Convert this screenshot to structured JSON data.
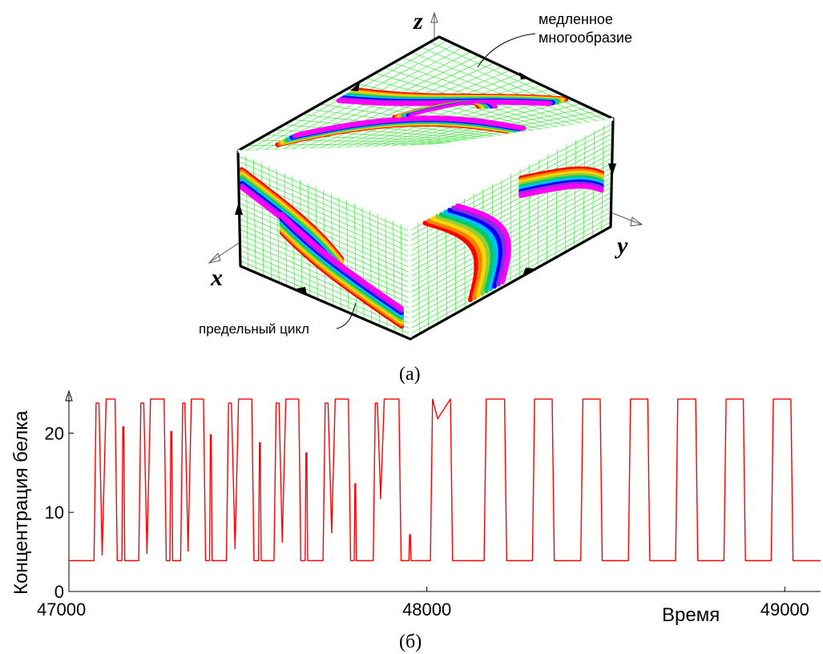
{
  "panel_a": {
    "caption": "(а)",
    "axis_x": "x",
    "axis_y": "y",
    "axis_z": "z",
    "label_manifold": [
      "медленное",
      "многообразие"
    ],
    "label_cycle": "предельный цикл",
    "rainbow_colors": [
      "#ff0000",
      "#ff7f00",
      "#ffd700",
      "#9acd32",
      "#00cc66",
      "#00bfff",
      "#0000ff",
      "#8a2be2",
      "#ff00ff"
    ],
    "mesh_color": "#33dd33"
  },
  "panel_b": {
    "caption": "(б)"
  },
  "chart_data": {
    "type": "line",
    "title": "",
    "xlabel": "Время",
    "ylabel": "Концентрация белка",
    "xlim": [
      47000,
      49100
    ],
    "ylim": [
      0,
      25
    ],
    "x_ticks": [
      "47000",
      "48000",
      "49000"
    ],
    "x_tick_values": [
      47000,
      48000,
      49000
    ],
    "y_ticks": [
      "0",
      "10",
      "20"
    ],
    "y_tick_values": [
      0,
      10,
      20
    ],
    "grid": false,
    "line_color": "#ff0000",
    "series": [
      {
        "baseline": 3.9,
        "plateau": 24.3,
        "pulses": [
          {
            "start": 47070,
            "end": 47090,
            "peak": 23.8
          },
          {
            "start": 47098,
            "end": 47135,
            "peak": 24.3
          },
          {
            "start": 47148,
            "end": 47156,
            "peak": 20.8
          },
          {
            "start": 47195,
            "end": 47215,
            "peak": 23.8
          },
          {
            "start": 47222,
            "end": 47272,
            "peak": 24.3
          },
          {
            "start": 47282,
            "end": 47290,
            "peak": 20.2
          },
          {
            "start": 47312,
            "end": 47330,
            "peak": 23.8
          },
          {
            "start": 47336,
            "end": 47382,
            "peak": 24.3
          },
          {
            "start": 47393,
            "end": 47400,
            "peak": 19.8
          },
          {
            "start": 47440,
            "end": 47460,
            "peak": 23.8
          },
          {
            "start": 47468,
            "end": 47517,
            "peak": 24.3
          },
          {
            "start": 47530,
            "end": 47537,
            "peak": 18.8
          },
          {
            "start": 47573,
            "end": 47593,
            "peak": 23.8
          },
          {
            "start": 47600,
            "end": 47648,
            "peak": 24.3
          },
          {
            "start": 47660,
            "end": 47667,
            "peak": 17.5
          },
          {
            "start": 47710,
            "end": 47730,
            "peak": 23.8
          },
          {
            "start": 47738,
            "end": 47787,
            "peak": 24.3
          },
          {
            "start": 47797,
            "end": 47803,
            "peak": 13.6
          },
          {
            "start": 47850,
            "end": 47868,
            "peak": 23.8
          },
          {
            "start": 47875,
            "end": 47928,
            "peak": 24.3
          },
          {
            "start": 47950,
            "end": 47956,
            "peak": 7.2
          },
          {
            "start": 48010,
            "end": 48072,
            "peak": 24.3
          },
          {
            "start": 48160,
            "end": 48223,
            "peak": 24.3
          },
          {
            "start": 48295,
            "end": 48356,
            "peak": 24.3
          },
          {
            "start": 48430,
            "end": 48490,
            "peak": 24.3
          },
          {
            "start": 48563,
            "end": 48623,
            "peak": 24.3
          },
          {
            "start": 48695,
            "end": 48757,
            "peak": 24.3
          },
          {
            "start": 48830,
            "end": 48890,
            "peak": 24.3
          },
          {
            "start": 48962,
            "end": 49023,
            "peak": 24.3
          }
        ],
        "dips": [
          {
            "x": 47093,
            "value": 4.6
          },
          {
            "x": 47218,
            "value": 4.8
          },
          {
            "x": 47333,
            "value": 5.1
          },
          {
            "x": 47464,
            "value": 5.4
          },
          {
            "x": 47596,
            "value": 6.2
          },
          {
            "x": 47734,
            "value": 7.4
          },
          {
            "x": 47871,
            "value": 11.7
          },
          {
            "x": 48030,
            "value": 21.8
          }
        ]
      }
    ]
  }
}
